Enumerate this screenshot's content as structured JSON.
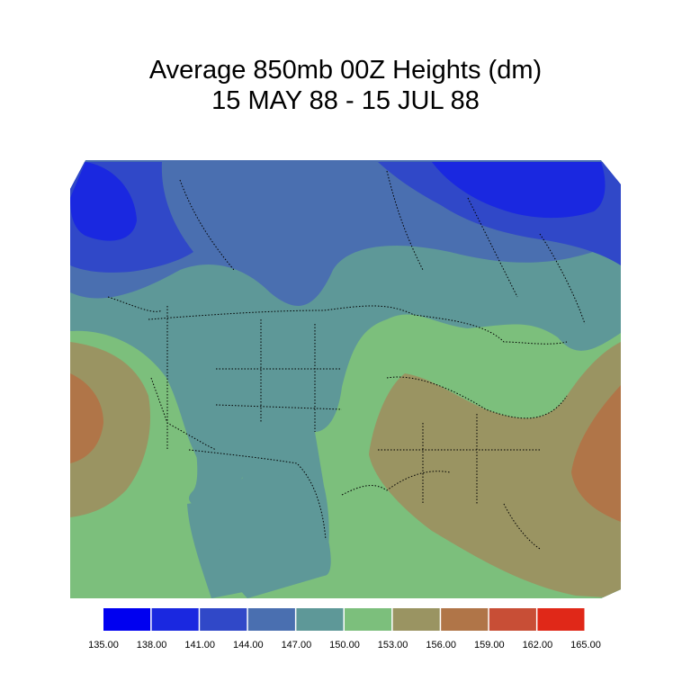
{
  "title": {
    "line1": "Average 850mb 00Z Heights (dm)",
    "line2": "15 MAY 88 - 15 JUL 88"
  },
  "legend": {
    "bins": [
      {
        "color": "#0000f0"
      },
      {
        "color": "#1a28e0"
      },
      {
        "color": "#3048c8"
      },
      {
        "color": "#4a6fb0"
      },
      {
        "color": "#5e9898"
      },
      {
        "color": "#7cbf7c"
      },
      {
        "color": "#9a9462"
      },
      {
        "color": "#b07548"
      },
      {
        "color": "#c84e36"
      },
      {
        "color": "#e02818"
      }
    ],
    "ticks": [
      "135.00",
      "138.00",
      "141.00",
      "144.00",
      "147.00",
      "150.00",
      "153.00",
      "156.00",
      "159.00",
      "162.00",
      "165.00"
    ]
  }
}
